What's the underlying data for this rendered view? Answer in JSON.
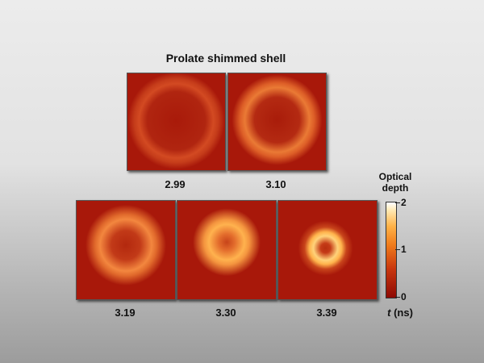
{
  "figure": {
    "title": "Prolate shimmed shell",
    "panels": [
      {
        "label": "2.99"
      },
      {
        "label": "3.10"
      },
      {
        "label": "3.19"
      },
      {
        "label": "3.30"
      },
      {
        "label": "3.39"
      }
    ],
    "colorbar": {
      "title_line1": "Optical",
      "title_line2": "depth",
      "ticks": [
        "0",
        "1",
        "2"
      ]
    },
    "time_axis": {
      "symbol": "t",
      "unit": "(ns)"
    }
  }
}
